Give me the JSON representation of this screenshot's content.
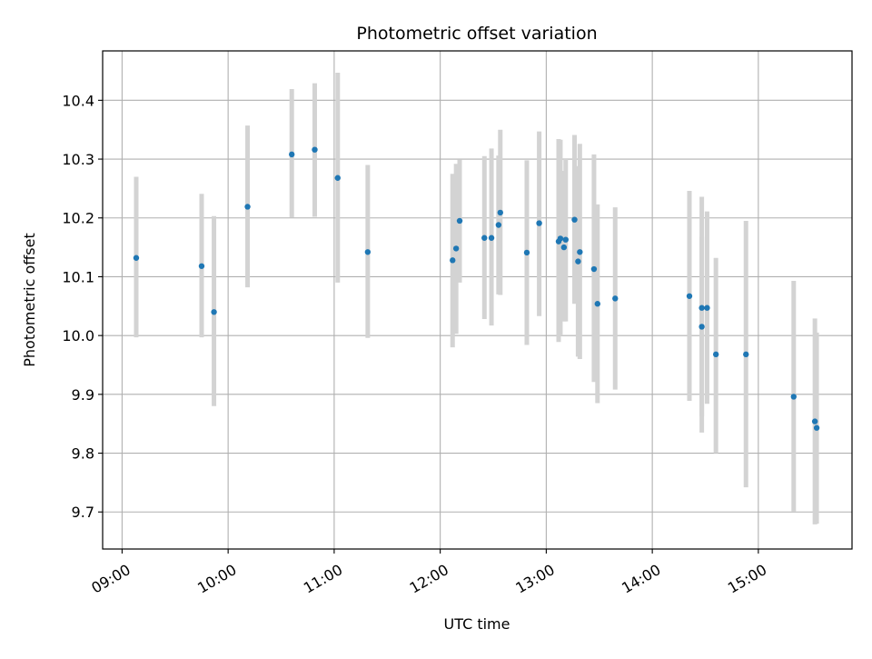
{
  "chart_data": {
    "type": "scatter",
    "title": "Photometric offset variation",
    "xlabel": "UTC time",
    "ylabel": "Photometric offset",
    "x_tick_labels": [
      "09:00",
      "10:00",
      "11:00",
      "12:00",
      "13:00",
      "14:00",
      "15:00"
    ],
    "y_tick_labels": [
      "9.7",
      "9.8",
      "9.9",
      "10.0",
      "10.1",
      "10.2",
      "10.3",
      "10.4"
    ],
    "y_ticks": [
      9.7,
      9.8,
      9.9,
      10.0,
      10.1,
      10.2,
      10.3,
      10.4
    ],
    "xlim": [
      "08:49",
      "15:53"
    ],
    "ylim": [
      9.637,
      10.484
    ],
    "grid": true,
    "colors": {
      "points": "#1f77b4",
      "error_bars": "#d3d3d3",
      "grid": "#b0b0b0"
    },
    "points": [
      {
        "x": "09:08",
        "y": 10.132,
        "err_low": 9.997,
        "err_high": 10.27
      },
      {
        "x": "09:45",
        "y": 10.118,
        "err_low": 9.997,
        "err_high": 10.241
      },
      {
        "x": "09:52",
        "y": 10.04,
        "err_low": 9.88,
        "err_high": 10.203
      },
      {
        "x": "10:11",
        "y": 10.219,
        "err_low": 10.082,
        "err_high": 10.357
      },
      {
        "x": "10:36",
        "y": 10.308,
        "err_low": 10.201,
        "err_high": 10.419
      },
      {
        "x": "10:49",
        "y": 10.316,
        "err_low": 10.202,
        "err_high": 10.429
      },
      {
        "x": "11:02",
        "y": 10.268,
        "err_low": 10.09,
        "err_high": 10.447
      },
      {
        "x": "11:19",
        "y": 10.142,
        "err_low": 9.996,
        "err_high": 10.29
      },
      {
        "x": "12:07",
        "y": 10.128,
        "err_low": 9.98,
        "err_high": 10.275
      },
      {
        "x": "12:09",
        "y": 10.148,
        "err_low": 10.003,
        "err_high": 10.292
      },
      {
        "x": "12:11",
        "y": 10.195,
        "err_low": 10.09,
        "err_high": 10.299
      },
      {
        "x": "12:25",
        "y": 10.166,
        "err_low": 10.028,
        "err_high": 10.305
      },
      {
        "x": "12:29",
        "y": 10.166,
        "err_low": 10.017,
        "err_high": 10.318
      },
      {
        "x": "12:33",
        "y": 10.188,
        "err_low": 10.07,
        "err_high": 10.306
      },
      {
        "x": "12:34",
        "y": 10.209,
        "err_low": 10.069,
        "err_high": 10.35
      },
      {
        "x": "12:49",
        "y": 10.141,
        "err_low": 9.984,
        "err_high": 10.298
      },
      {
        "x": "12:56",
        "y": 10.191,
        "err_low": 10.033,
        "err_high": 10.347
      },
      {
        "x": "13:07",
        "y": 10.16,
        "err_low": 9.989,
        "err_high": 10.334
      },
      {
        "x": "13:08",
        "y": 10.165,
        "err_low": 10.0,
        "err_high": 10.333
      },
      {
        "x": "13:10",
        "y": 10.15,
        "err_low": 10.024,
        "err_high": 10.28
      },
      {
        "x": "13:11",
        "y": 10.163,
        "err_low": 10.024,
        "err_high": 10.3
      },
      {
        "x": "13:16",
        "y": 10.197,
        "err_low": 10.054,
        "err_high": 10.341
      },
      {
        "x": "13:18",
        "y": 10.126,
        "err_low": 9.964,
        "err_high": 10.288
      },
      {
        "x": "13:19",
        "y": 10.142,
        "err_low": 9.96,
        "err_high": 10.326
      },
      {
        "x": "13:27",
        "y": 10.113,
        "err_low": 9.921,
        "err_high": 10.308
      },
      {
        "x": "13:29",
        "y": 10.054,
        "err_low": 9.885,
        "err_high": 10.223
      },
      {
        "x": "13:39",
        "y": 10.063,
        "err_low": 9.908,
        "err_high": 10.218
      },
      {
        "x": "14:21",
        "y": 10.067,
        "err_low": 9.889,
        "err_high": 10.246
      },
      {
        "x": "14:28",
        "y": 10.015,
        "err_low": 9.863,
        "err_high": 10.168
      },
      {
        "x": "14:28",
        "y": 10.047,
        "err_low": 9.835,
        "err_high": 10.236
      },
      {
        "x": "14:31",
        "y": 10.047,
        "err_low": 9.884,
        "err_high": 10.211
      },
      {
        "x": "14:36",
        "y": 9.968,
        "err_low": 9.8,
        "err_high": 10.132
      },
      {
        "x": "14:53",
        "y": 9.968,
        "err_low": 9.742,
        "err_high": 10.195
      },
      {
        "x": "15:20",
        "y": 9.896,
        "err_low": 9.701,
        "err_high": 10.093
      },
      {
        "x": "15:32",
        "y": 9.854,
        "err_low": 9.679,
        "err_high": 10.029
      },
      {
        "x": "15:33",
        "y": 9.843,
        "err_low": 9.68,
        "err_high": 10.005
      }
    ]
  }
}
